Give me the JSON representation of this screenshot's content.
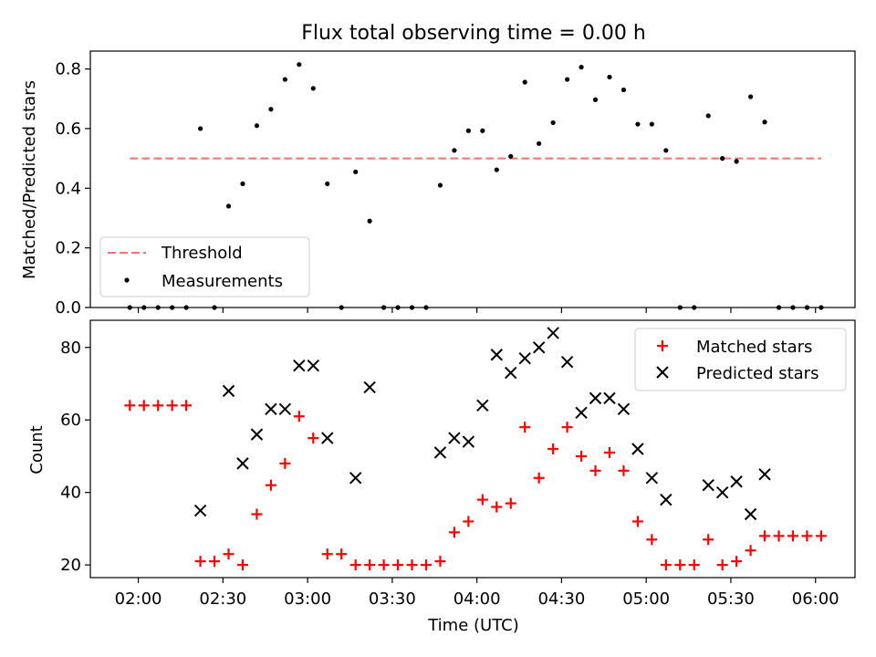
{
  "chart_data": [
    {
      "type": "scatter",
      "title": "Flux total observing time = 0.00 h",
      "xlabel": "",
      "ylabel": "Matched/Predicted stars",
      "ylim": [
        0.0,
        0.86
      ],
      "xlim": [
        "01:43",
        "06:14"
      ],
      "yticks": [
        "0.0",
        "0.2",
        "0.4",
        "0.6",
        "0.8"
      ],
      "ytick_values": [
        0.0,
        0.2,
        0.4,
        0.6,
        0.8
      ],
      "legend_position": "lower-left",
      "threshold": {
        "name": "Threshold",
        "value": 0.5,
        "x_range": [
          "01:57",
          "06:02"
        ],
        "color": "#ff7070"
      },
      "series": [
        {
          "name": "Measurements",
          "marker": "dot",
          "color": "#000000",
          "x": [
            "01:57",
            "02:02",
            "02:07",
            "02:12",
            "02:17",
            "02:22",
            "02:27",
            "02:32",
            "02:37",
            "02:42",
            "02:47",
            "02:52",
            "02:57",
            "03:02",
            "03:07",
            "03:12",
            "03:17",
            "03:22",
            "03:27",
            "03:32",
            "03:37",
            "03:42",
            "03:47",
            "03:52",
            "03:57",
            "04:02",
            "04:07",
            "04:12",
            "04:17",
            "04:22",
            "04:27",
            "04:32",
            "04:37",
            "04:42",
            "04:47",
            "04:52",
            "04:57",
            "05:02",
            "05:07",
            "05:12",
            "05:17",
            "05:22",
            "05:27",
            "05:32",
            "05:37",
            "05:42",
            "05:47",
            "05:52",
            "05:57",
            "06:02"
          ],
          "y": [
            0.0,
            0.0,
            0.0,
            0.0,
            0.0,
            0.6,
            0.0,
            0.34,
            0.415,
            0.61,
            0.665,
            0.765,
            0.815,
            0.735,
            0.415,
            0.0,
            0.455,
            0.29,
            0.0,
            0.0,
            0.0,
            0.0,
            0.41,
            0.527,
            0.593,
            0.593,
            0.462,
            0.507,
            0.756,
            0.55,
            0.62,
            0.765,
            0.806,
            0.697,
            0.773,
            0.73,
            0.615,
            0.615,
            0.527,
            0.0,
            0.0,
            0.643,
            0.5,
            0.49,
            0.707,
            0.622,
            0.0,
            0.0,
            0.0,
            0.0
          ]
        }
      ]
    },
    {
      "type": "scatter",
      "title": "",
      "xlabel": "Time (UTC)",
      "ylabel": "Count",
      "ylim": [
        16.5,
        87.5
      ],
      "xlim": [
        "01:43",
        "06:14"
      ],
      "yticks": [
        "20",
        "40",
        "60",
        "80"
      ],
      "ytick_values": [
        20,
        40,
        60,
        80
      ],
      "xticks": [
        "02:00",
        "02:30",
        "03:00",
        "03:30",
        "04:00",
        "04:30",
        "05:00",
        "05:30",
        "06:00"
      ],
      "legend_position": "top-right",
      "series": [
        {
          "name": "Matched stars",
          "marker": "plus",
          "color": "#ff0000",
          "x": [
            "01:57",
            "02:02",
            "02:07",
            "02:12",
            "02:17",
            "02:22",
            "02:27",
            "02:32",
            "02:37",
            "02:42",
            "02:47",
            "02:52",
            "02:57",
            "03:02",
            "03:07",
            "03:12",
            "03:17",
            "03:22",
            "03:27",
            "03:32",
            "03:37",
            "03:42",
            "03:47",
            "03:52",
            "03:57",
            "04:02",
            "04:07",
            "04:12",
            "04:17",
            "04:22",
            "04:27",
            "04:32",
            "04:37",
            "04:42",
            "04:47",
            "04:52",
            "04:57",
            "05:02",
            "05:07",
            "05:12",
            "05:17",
            "05:22",
            "05:27",
            "05:32",
            "05:37",
            "05:42",
            "05:47",
            "05:52",
            "05:57",
            "06:02"
          ],
          "y": [
            64,
            64,
            64,
            64,
            64,
            21,
            21,
            23,
            20,
            34,
            42,
            48,
            61,
            55,
            23,
            23,
            20,
            20,
            20,
            20,
            20,
            20,
            21,
            29,
            32,
            38,
            36,
            37,
            58,
            44,
            52,
            58,
            50,
            46,
            51,
            46,
            32,
            27,
            20,
            20,
            20,
            27,
            20,
            21,
            24,
            28,
            28,
            28,
            28,
            28
          ]
        },
        {
          "name": "Predicted stars",
          "marker": "x",
          "color": "#000000",
          "x": [
            "02:22",
            "02:32",
            "02:37",
            "02:42",
            "02:47",
            "02:52",
            "02:57",
            "03:02",
            "03:07",
            "03:17",
            "03:22",
            "03:47",
            "03:52",
            "03:57",
            "04:02",
            "04:07",
            "04:12",
            "04:17",
            "04:22",
            "04:27",
            "04:32",
            "04:37",
            "04:42",
            "04:47",
            "04:52",
            "04:57",
            "05:02",
            "05:07",
            "05:22",
            "05:27",
            "05:32",
            "05:37",
            "05:42"
          ],
          "y": [
            35,
            68,
            48,
            56,
            63,
            63,
            75,
            75,
            55,
            44,
            69,
            51,
            55,
            54,
            64,
            78,
            73,
            77,
            80,
            84,
            76,
            62,
            66,
            66,
            63,
            52,
            44,
            38,
            42,
            40,
            43,
            34,
            45
          ]
        }
      ]
    }
  ]
}
